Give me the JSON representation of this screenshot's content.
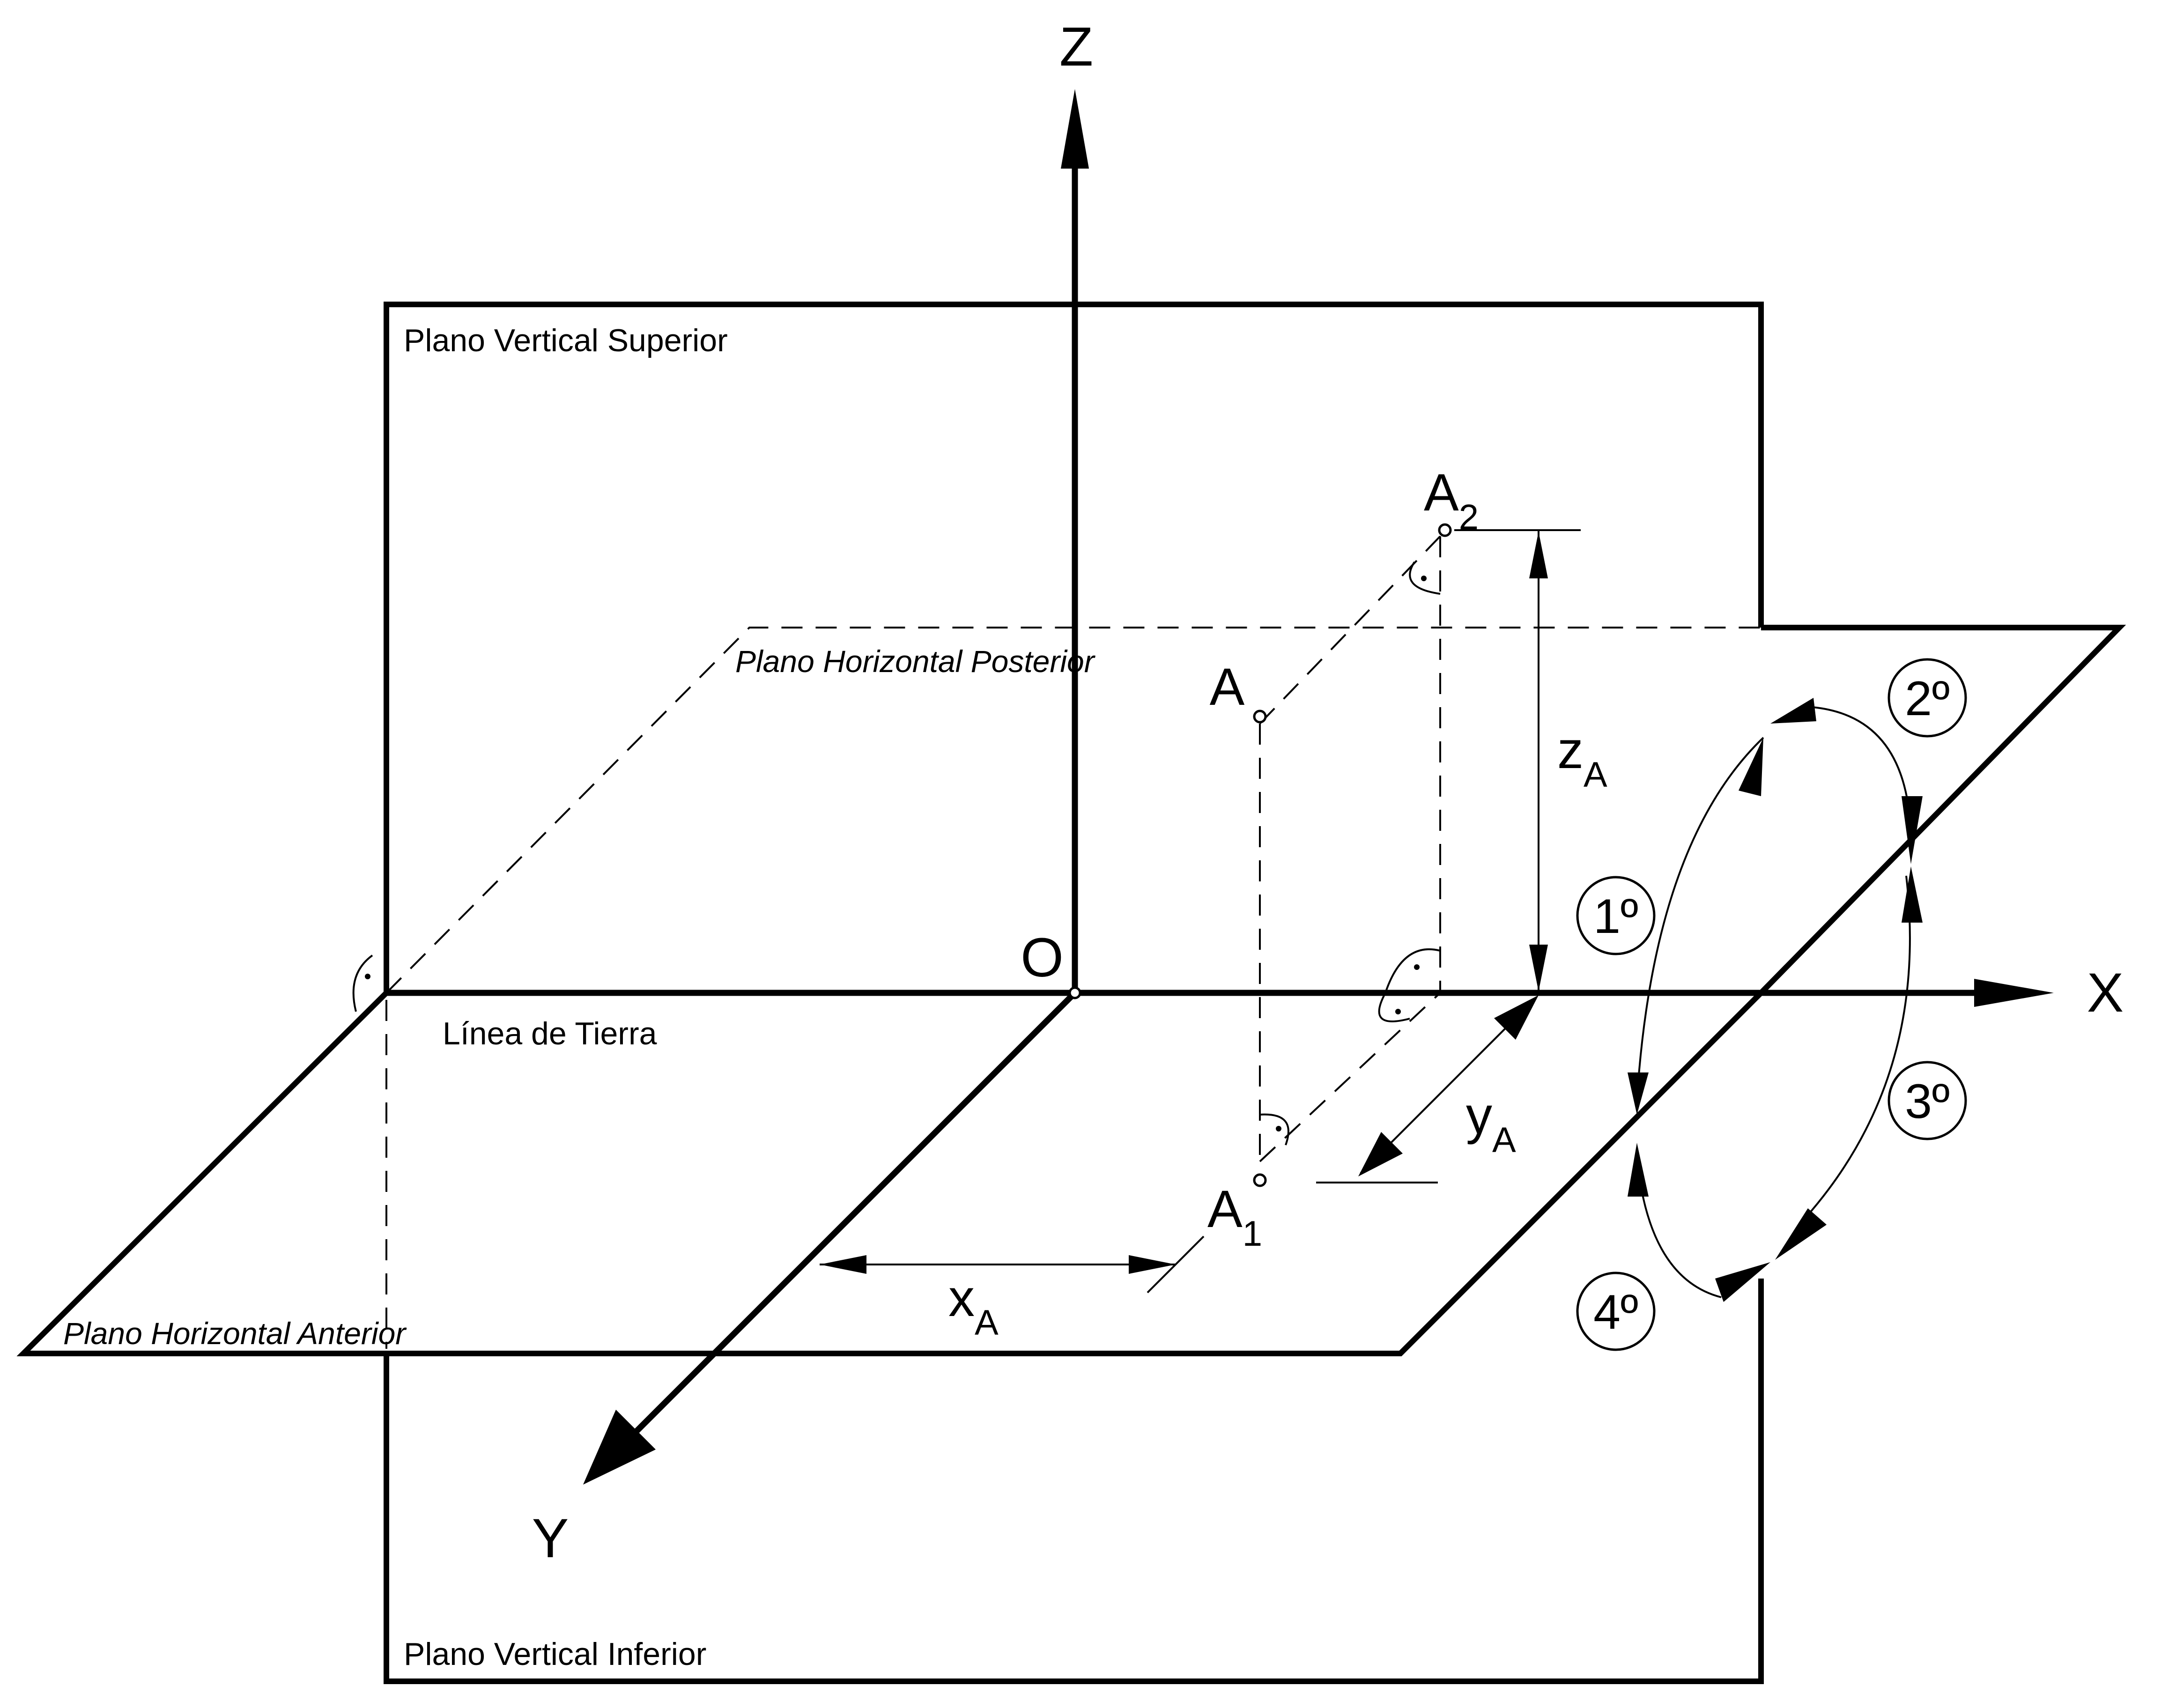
{
  "planes": {
    "vertical_superior": "Plano Vertical Superior",
    "vertical_inferior": "Plano Vertical Inferior",
    "horizontal_posterior": "Plano Horizontal Posterior",
    "horizontal_anterior": "Plano Horizontal Anterior"
  },
  "ground_line": "Línea de Tierra",
  "axes": {
    "x": "X",
    "y": "Y",
    "z": "Z",
    "origin": "O"
  },
  "point": {
    "name": "A",
    "projection_1": {
      "base": "A",
      "sub": "1"
    },
    "projection_2": {
      "base": "A",
      "sub": "2"
    }
  },
  "coordinates": {
    "x": {
      "base": "x",
      "sub": "A"
    },
    "y": {
      "base": "y",
      "sub": "A"
    },
    "z": {
      "base": "z",
      "sub": "A"
    }
  },
  "quadrants": [
    "1º",
    "2º",
    "3º",
    "4º"
  ]
}
